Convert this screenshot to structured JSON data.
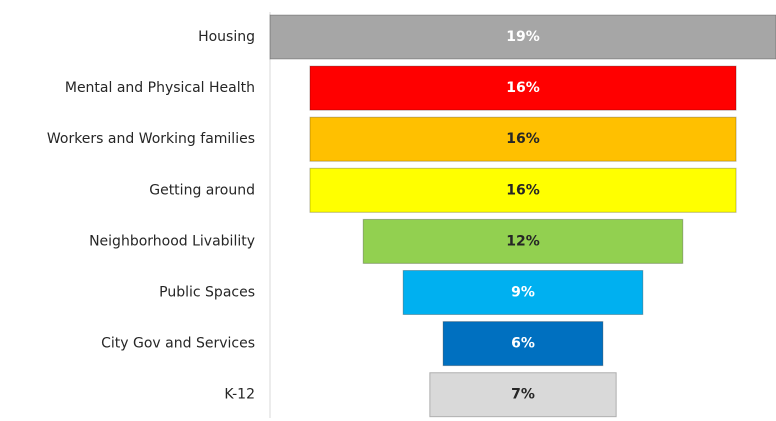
{
  "chart_data": {
    "type": "funnel",
    "categories": [
      "Housing",
      "Mental and Physical Health",
      "Workers and Working families",
      "Getting around",
      "Neighborhood Livability",
      "Public Spaces",
      "City Gov and Services",
      "K-12"
    ],
    "values": [
      19,
      16,
      16,
      16,
      12,
      9,
      6,
      7
    ],
    "value_labels": [
      "19%",
      "16%",
      "16%",
      "16%",
      "12%",
      "9%",
      "6%",
      "7%"
    ],
    "colors": [
      "#a6a6a6",
      "#ff0000",
      "#ffc000",
      "#ffff00",
      "#92d050",
      "#00b0f0",
      "#0070c0",
      "#d9d9d9"
    ],
    "label_colors": [
      "#ffffff",
      "#ffffff",
      "#262626",
      "#262626",
      "#262626",
      "#ffffff",
      "#ffffff",
      "#262626"
    ]
  }
}
